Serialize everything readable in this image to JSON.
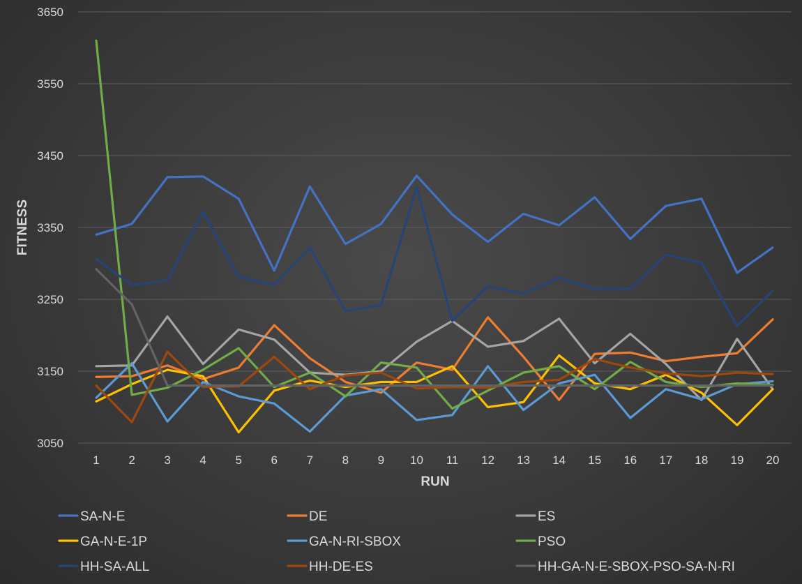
{
  "chart_data": {
    "type": "line",
    "xlabel": "RUN",
    "ylabel": "FITNESS",
    "ylim": [
      3050,
      3650
    ],
    "yticks": [
      3050,
      3150,
      3250,
      3350,
      3450,
      3550,
      3650
    ],
    "categories": [
      "1",
      "2",
      "3",
      "4",
      "5",
      "6",
      "7",
      "8",
      "9",
      "10",
      "11",
      "12",
      "13",
      "14",
      "15",
      "16",
      "17",
      "18",
      "19",
      "20"
    ],
    "grid": "horizontal",
    "legend_position": "bottom",
    "series": [
      {
        "name": "SA-N-E",
        "color": "#4472c4",
        "values": [
          3340,
          3355,
          3420,
          3421,
          3390,
          3290,
          3407,
          3327,
          3355,
          3422,
          3368,
          3330,
          3369,
          3353,
          3392,
          3334,
          3380,
          3390,
          3287,
          3322
        ]
      },
      {
        "name": "DE",
        "color": "#ed7d31",
        "values": [
          3142,
          3143,
          3158,
          3139,
          3155,
          3214,
          3168,
          3135,
          3120,
          3162,
          3152,
          3225,
          3170,
          3110,
          3174,
          3176,
          3164,
          3170,
          3175,
          3222
        ]
      },
      {
        "name": "ES",
        "color": "#a5a5a5",
        "values": [
          3157,
          3158,
          3226,
          3160,
          3208,
          3194,
          3148,
          3145,
          3150,
          3191,
          3220,
          3184,
          3192,
          3223,
          3161,
          3202,
          3160,
          3110,
          3195,
          3125
        ]
      },
      {
        "name": "GA-N-E-1P",
        "color": "#ffc000",
        "values": [
          3108,
          3132,
          3152,
          3143,
          3065,
          3123,
          3137,
          3128,
          3135,
          3135,
          3157,
          3100,
          3107,
          3172,
          3133,
          3125,
          3145,
          3120,
          3075,
          3125
        ]
      },
      {
        "name": "GA-N-RI-SBOX",
        "color": "#5b9bd5",
        "values": [
          3113,
          3161,
          3080,
          3135,
          3115,
          3105,
          3066,
          3116,
          3125,
          3082,
          3089,
          3157,
          3096,
          3133,
          3145,
          3085,
          3125,
          3111,
          3132,
          3136
        ]
      },
      {
        "name": "PSO",
        "color": "#70ad47",
        "values": [
          3610,
          3117,
          3127,
          3152,
          3182,
          3128,
          3148,
          3115,
          3162,
          3155,
          3098,
          3123,
          3148,
          3157,
          3125,
          3163,
          3135,
          3128,
          3133,
          3131
        ]
      },
      {
        "name": "HH-SA-ALL",
        "color": "#264478",
        "values": [
          3306,
          3270,
          3276,
          3372,
          3281,
          3270,
          3322,
          3234,
          3242,
          3406,
          3220,
          3268,
          3258,
          3280,
          3265,
          3265,
          3312,
          3301,
          3213,
          3262
        ]
      },
      {
        "name": "HH-DE-ES",
        "color": "#9e480e",
        "values": [
          3130,
          3079,
          3177,
          3128,
          3129,
          3170,
          3125,
          3144,
          3148,
          3126,
          3128,
          3127,
          3135,
          3138,
          3167,
          3155,
          3147,
          3143,
          3148,
          3146
        ]
      },
      {
        "name": "HH-GA-N-E-SBOX-PSO-SA-N-RI",
        "color": "#636363",
        "values": [
          3292,
          3243,
          3130,
          3130,
          3130,
          3130,
          3130,
          3130,
          3130,
          3130,
          3130,
          3130,
          3130,
          3130,
          3130,
          3130,
          3130,
          3130,
          3130,
          3130
        ]
      }
    ]
  }
}
